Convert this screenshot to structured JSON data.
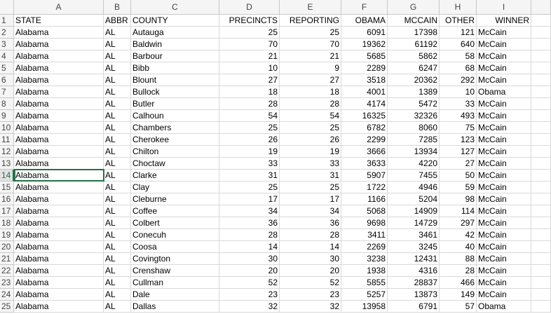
{
  "columns": [
    "A",
    "B",
    "C",
    "D",
    "E",
    "F",
    "G",
    "H",
    "I"
  ],
  "row_numbers": [
    1,
    2,
    3,
    4,
    5,
    6,
    7,
    8,
    9,
    10,
    11,
    12,
    13,
    14,
    15,
    16,
    17,
    18,
    19,
    20,
    21,
    22,
    23,
    24,
    25
  ],
  "rows": [
    [
      "STATE",
      "ABBR",
      "COUNTY",
      "PRECINCTS",
      "REPORTING",
      "OBAMA",
      "MCCAIN",
      "OTHER",
      "WINNER"
    ],
    [
      "Alabama",
      "AL",
      "Autauga",
      25,
      25,
      6091,
      17398,
      121,
      "McCain"
    ],
    [
      "Alabama",
      "AL",
      "Baldwin",
      70,
      70,
      19362,
      61192,
      640,
      "McCain"
    ],
    [
      "Alabama",
      "AL",
      "Barbour",
      21,
      21,
      5685,
      5862,
      58,
      "McCain"
    ],
    [
      "Alabama",
      "AL",
      "Bibb",
      10,
      9,
      2289,
      6247,
      68,
      "McCain"
    ],
    [
      "Alabama",
      "AL",
      "Blount",
      27,
      27,
      3518,
      20362,
      292,
      "McCain"
    ],
    [
      "Alabama",
      "AL",
      "Bullock",
      18,
      18,
      4001,
      1389,
      10,
      "Obama"
    ],
    [
      "Alabama",
      "AL",
      "Butler",
      28,
      28,
      4174,
      5472,
      33,
      "McCain"
    ],
    [
      "Alabama",
      "AL",
      "Calhoun",
      54,
      54,
      16325,
      32326,
      493,
      "McCain"
    ],
    [
      "Alabama",
      "AL",
      "Chambers",
      25,
      25,
      6782,
      8060,
      75,
      "McCain"
    ],
    [
      "Alabama",
      "AL",
      "Cherokee",
      26,
      26,
      2299,
      7285,
      123,
      "McCain"
    ],
    [
      "Alabama",
      "AL",
      "Chilton",
      19,
      19,
      3666,
      13934,
      127,
      "McCain"
    ],
    [
      "Alabama",
      "AL",
      "Choctaw",
      33,
      33,
      3633,
      4220,
      27,
      "McCain"
    ],
    [
      "Alabama",
      "AL",
      "Clarke",
      31,
      31,
      5907,
      7455,
      50,
      "McCain"
    ],
    [
      "Alabama",
      "AL",
      "Clay",
      25,
      25,
      1722,
      4946,
      59,
      "McCain"
    ],
    [
      "Alabama",
      "AL",
      "Cleburne",
      17,
      17,
      1166,
      5204,
      98,
      "McCain"
    ],
    [
      "Alabama",
      "AL",
      "Coffee",
      34,
      34,
      5068,
      14909,
      114,
      "McCain"
    ],
    [
      "Alabama",
      "AL",
      "Colbert",
      36,
      36,
      9698,
      14729,
      297,
      "McCain"
    ],
    [
      "Alabama",
      "AL",
      "Conecuh",
      28,
      28,
      3411,
      3461,
      42,
      "McCain"
    ],
    [
      "Alabama",
      "AL",
      "Coosa",
      14,
      14,
      2269,
      3245,
      40,
      "McCain"
    ],
    [
      "Alabama",
      "AL",
      "Covington",
      30,
      30,
      3238,
      12431,
      88,
      "McCain"
    ],
    [
      "Alabama",
      "AL",
      "Crenshaw",
      20,
      20,
      1938,
      4316,
      28,
      "McCain"
    ],
    [
      "Alabama",
      "AL",
      "Cullman",
      52,
      52,
      5855,
      28837,
      466,
      "McCain"
    ],
    [
      "Alabama",
      "AL",
      "Dale",
      23,
      23,
      5257,
      13873,
      149,
      "McCain"
    ],
    [
      "Alabama",
      "AL",
      "Dallas",
      32,
      32,
      13958,
      6791,
      57,
      "Obama"
    ]
  ]
}
